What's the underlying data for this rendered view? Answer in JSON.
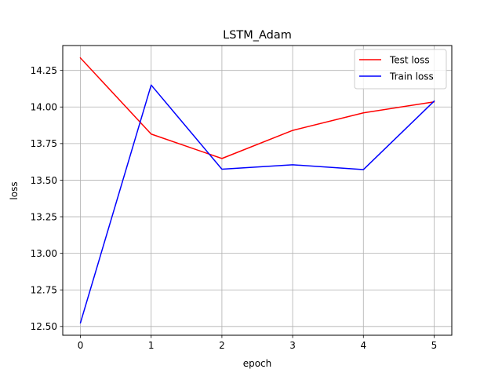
{
  "chart_data": {
    "type": "line",
    "title": "LSTM_Adam",
    "xlabel": "epoch",
    "ylabel": "loss",
    "x": [
      0,
      1,
      2,
      3,
      4,
      5
    ],
    "xticks": [
      "0",
      "1",
      "2",
      "3",
      "4",
      "5"
    ],
    "yticks": [
      "12.50",
      "12.75",
      "13.00",
      "13.25",
      "13.50",
      "13.75",
      "14.00",
      "14.25"
    ],
    "xlim": [
      -0.25,
      5.25
    ],
    "ylim": [
      12.44,
      14.42
    ],
    "grid": true,
    "legend": "top-right",
    "series": [
      {
        "name": "Test loss",
        "color": "#ff0000",
        "values": [
          14.335,
          13.815,
          13.648,
          13.84,
          13.96,
          14.035
        ]
      },
      {
        "name": "Train loss",
        "color": "#0000ff",
        "values": [
          12.525,
          14.15,
          13.575,
          13.605,
          13.572,
          14.04
        ]
      }
    ]
  }
}
